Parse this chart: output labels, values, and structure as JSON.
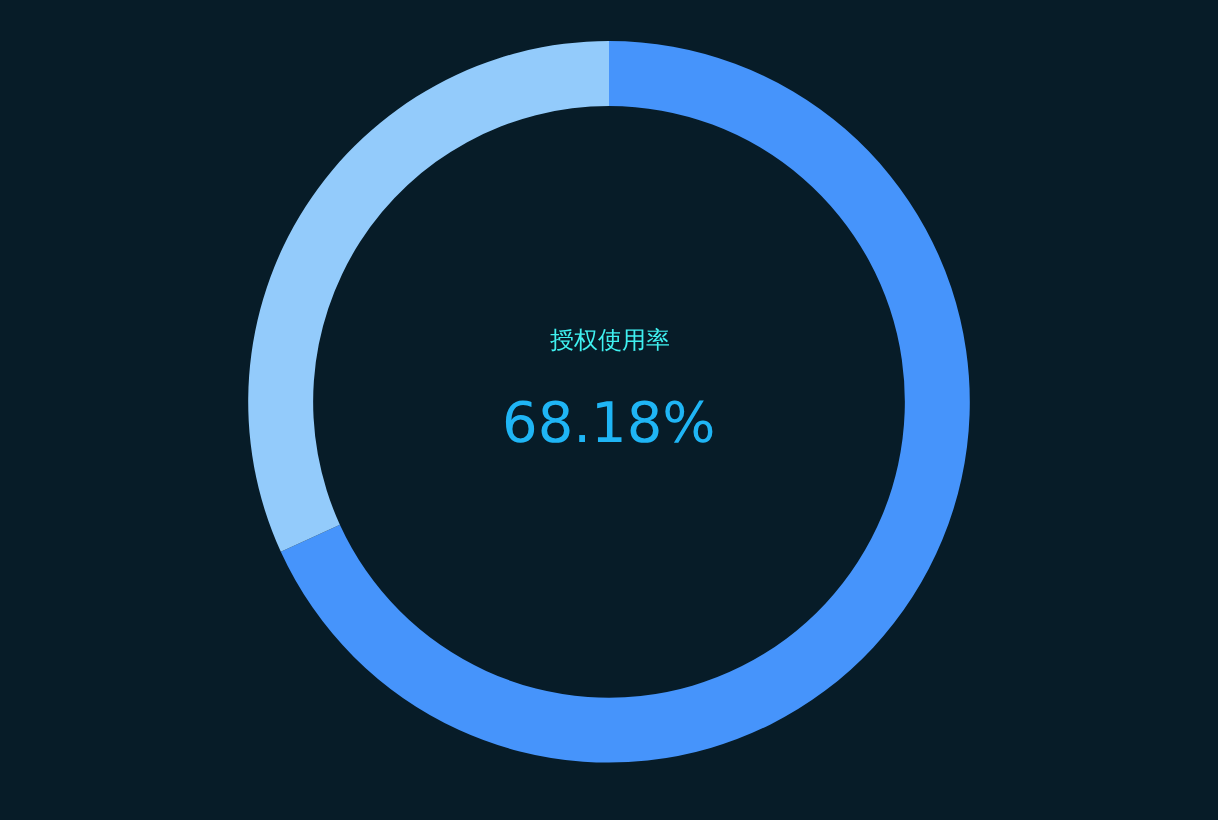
{
  "chart_data": {
    "type": "donut",
    "title": "授权使用率",
    "categories": [
      null,
      null
    ],
    "values": [
      68.18,
      31.82
    ],
    "colors": [
      "#4694fb",
      "#93cbfb"
    ],
    "value_labels": [
      "68.18%",
      null
    ],
    "legend": false
  }
}
